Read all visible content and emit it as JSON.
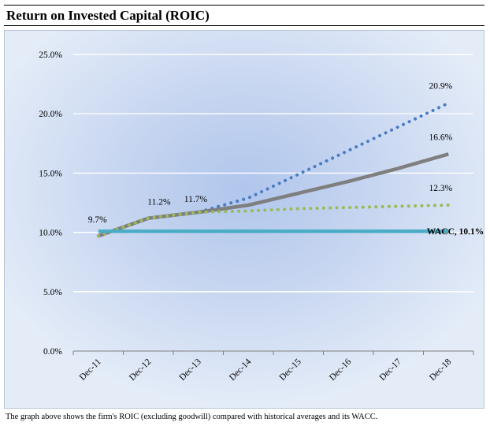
{
  "header": {
    "title": "Return on Invested Capital (ROIC)"
  },
  "caption": "The graph above shows the firm's ROIC (excluding goodwill) compared with historical averages and its WACC.",
  "colors": {
    "blue_dotted": "#4a7cc4",
    "gray_solid": "#7f7f7f",
    "green_dotted": "#9bbb59",
    "wacc": "#4bacc6",
    "grid": "#ffffff",
    "axis": "#808080"
  },
  "chart_data": {
    "type": "line",
    "title": "Return on Invested Capital (ROIC)",
    "categories": [
      "Dec-11",
      "Dec-12",
      "Dec-13",
      "Dec-14",
      "Dec-15",
      "Dec-16",
      "Dec-17",
      "Dec-18"
    ],
    "ylim": [
      0,
      25
    ],
    "yticks": [
      "0.0%",
      "5.0%",
      "10.0%",
      "15.0%",
      "20.0%",
      "25.0%"
    ],
    "grid": true,
    "series": [
      {
        "style": "dotted",
        "color": "#4a7cc4",
        "values": [
          9.7,
          11.2,
          11.7,
          12.9,
          14.9,
          16.9,
          18.9,
          20.9
        ]
      },
      {
        "style": "solid",
        "color": "#7f7f7f",
        "values": [
          9.7,
          11.2,
          11.7,
          12.3,
          13.3,
          14.3,
          15.4,
          16.6
        ]
      },
      {
        "style": "dotted",
        "color": "#9bbb59",
        "values": [
          9.7,
          11.2,
          11.7,
          11.8,
          12.0,
          12.1,
          12.2,
          12.3
        ]
      },
      {
        "name": "WACC",
        "style": "solid",
        "color": "#4bacc6",
        "values": [
          10.1,
          10.1,
          10.1,
          10.1,
          10.1,
          10.1,
          10.1,
          10.1
        ]
      }
    ],
    "annotations": [
      {
        "text": "9.7%",
        "category": "Dec-11",
        "value": 9.7
      },
      {
        "text": "11.2%",
        "category": "Dec-12",
        "value": 11.2
      },
      {
        "text": "11.7%",
        "category": "Dec-13",
        "value": 11.7
      },
      {
        "text": "20.9%",
        "category": "Dec-18",
        "value": 20.9
      },
      {
        "text": "16.6%",
        "category": "Dec-18",
        "value": 16.6
      },
      {
        "text": "12.3%",
        "category": "Dec-18",
        "value": 12.3
      },
      {
        "text": "WACC, 10.1%",
        "category": "Dec-18",
        "value": 10.1
      }
    ]
  }
}
